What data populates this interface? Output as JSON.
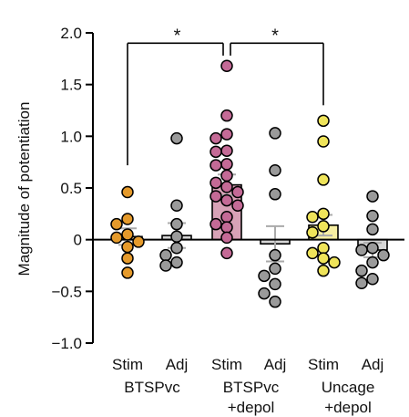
{
  "chart_data": {
    "type": "bar",
    "ylabel": "Magnitude of potentiation",
    "ylim": [
      -1.0,
      2.0
    ],
    "y_ticks": [
      "2.0",
      "1.5",
      "1.0",
      "0.5",
      "0",
      "−0.5",
      "−1.0"
    ],
    "y_tick_values": [
      2.0,
      1.5,
      1.0,
      0.5,
      0,
      -0.5,
      -1.0
    ],
    "categories": [
      "Stim",
      "Adj",
      "Stim",
      "Adj",
      "Stim",
      "Adj"
    ],
    "groups": [
      {
        "line1": "BTSPvc",
        "line2": ""
      },
      {
        "line1": "BTSPvc",
        "line2": "+depol"
      },
      {
        "line1": "Uncage",
        "line2": "+depol"
      }
    ],
    "series": [
      {
        "category": "Stim",
        "group": "BTSPvc",
        "color": "#E59A2B",
        "bar_color": "#F2C98C",
        "mean": 0.03,
        "error": 0.08,
        "points": [
          0.46,
          0.2,
          0.15,
          0.05,
          0.02,
          -0.02,
          -0.07,
          -0.18,
          -0.32
        ]
      },
      {
        "category": "Adj",
        "group": "BTSPvc",
        "color": "#9A9A9A",
        "bar_color": "#D6D6D6",
        "mean": 0.04,
        "error": 0.12,
        "points": [
          0.98,
          0.33,
          0.15,
          0.03,
          -0.08,
          -0.15,
          -0.22,
          -0.25
        ]
      },
      {
        "category": "Stim",
        "group": "BTSPvc +depol",
        "color": "#C46A96",
        "bar_color": "#D8A2B7",
        "mean": 0.53,
        "error": 0.1,
        "points": [
          1.68,
          1.2,
          1.02,
          0.98,
          0.86,
          0.85,
          0.73,
          0.72,
          0.62,
          0.55,
          0.51,
          0.46,
          0.42,
          0.38,
          0.33,
          0.22,
          0.15,
          0.12,
          0.02,
          -0.13
        ]
      },
      {
        "category": "Adj",
        "group": "BTSPvc +depol",
        "color": "#9A9A9A",
        "bar_color": "#D6D6D6",
        "mean": -0.04,
        "error": 0.17,
        "points": [
          1.03,
          0.67,
          0.44,
          -0.15,
          -0.28,
          -0.35,
          -0.43,
          -0.52,
          -0.6
        ]
      },
      {
        "category": "Stim",
        "group": "Uncage +depol",
        "color": "#EFE45A",
        "bar_color": "#F7EFA3",
        "mean": 0.14,
        "error": 0.1,
        "points": [
          1.15,
          0.95,
          0.58,
          0.25,
          0.22,
          0.13,
          0.07,
          -0.08,
          -0.13,
          -0.18,
          -0.22,
          -0.3
        ]
      },
      {
        "category": "Adj",
        "group": "Uncage +depol",
        "color": "#9A9A9A",
        "bar_color": "#D6D6D6",
        "mean": -0.1,
        "error": 0.07,
        "points": [
          0.42,
          0.23,
          0.1,
          -0.08,
          -0.1,
          -0.15,
          -0.22,
          -0.3,
          -0.38,
          -0.42
        ]
      }
    ],
    "annotations": [
      {
        "type": "significance",
        "label": "*",
        "between": [
          0,
          2
        ]
      },
      {
        "type": "significance",
        "label": "*",
        "between": [
          2,
          4
        ]
      }
    ],
    "grid": false,
    "legend": "none"
  }
}
